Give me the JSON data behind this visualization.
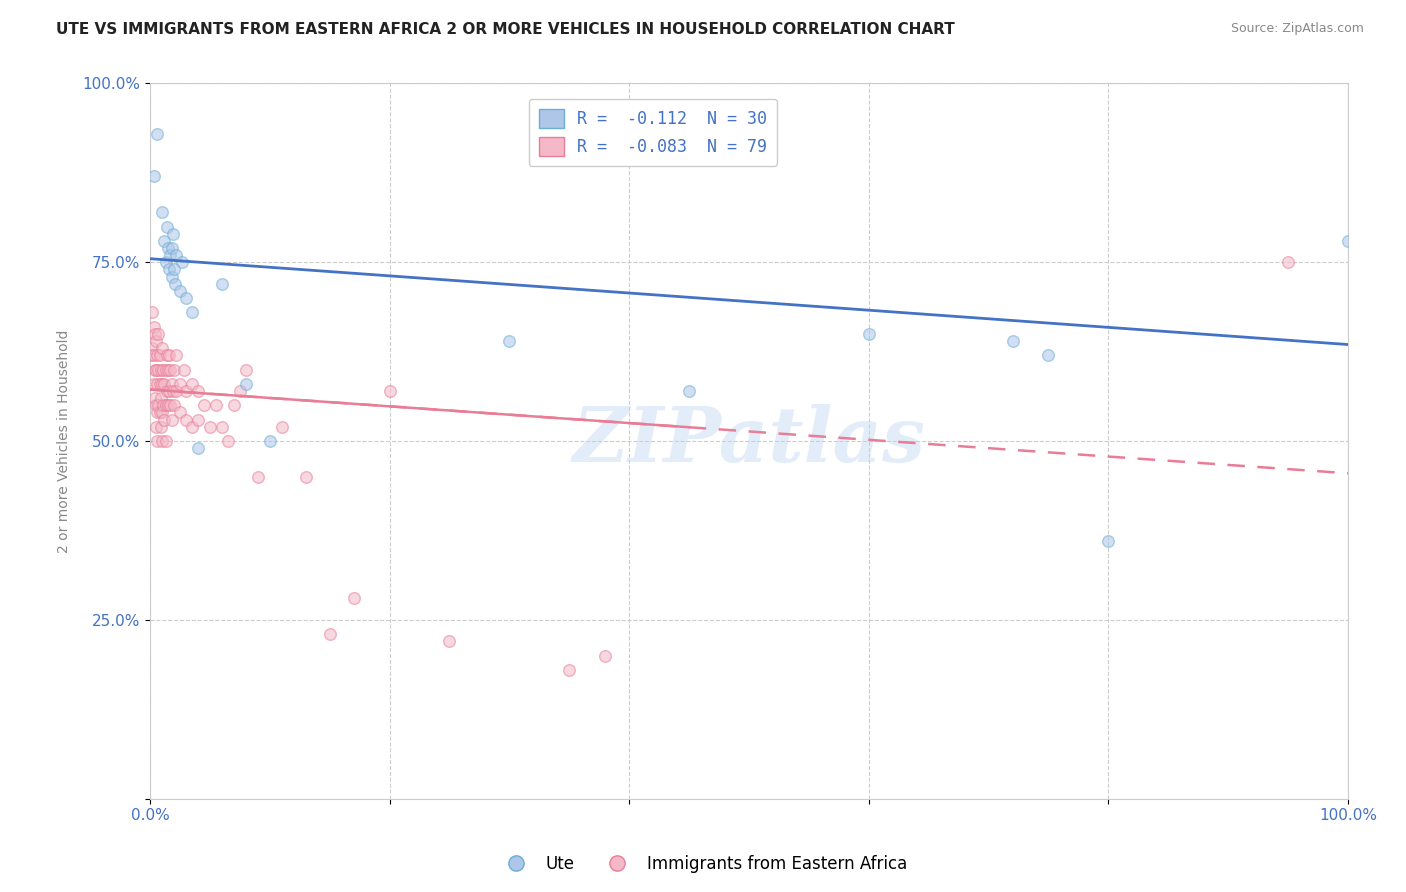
{
  "title": "UTE VS IMMIGRANTS FROM EASTERN AFRICA 2 OR MORE VEHICLES IN HOUSEHOLD CORRELATION CHART",
  "source": "Source: ZipAtlas.com",
  "ylabel": "2 or more Vehicles in Household",
  "xlabel": "",
  "background_color": "#ffffff",
  "grid_color": "#c8c8c8",
  "watermark": "ZIPatlas",
  "legend_label_ute": "R =  -0.112  N = 30",
  "legend_label_imm": "R =  -0.083  N = 79",
  "ute_points": [
    [
      0.003,
      0.87
    ],
    [
      0.006,
      0.93
    ],
    [
      0.01,
      0.82
    ],
    [
      0.012,
      0.78
    ],
    [
      0.013,
      0.75
    ],
    [
      0.014,
      0.8
    ],
    [
      0.015,
      0.77
    ],
    [
      0.016,
      0.74
    ],
    [
      0.017,
      0.76
    ],
    [
      0.018,
      0.73
    ],
    [
      0.018,
      0.77
    ],
    [
      0.019,
      0.79
    ],
    [
      0.02,
      0.74
    ],
    [
      0.021,
      0.72
    ],
    [
      0.022,
      0.76
    ],
    [
      0.025,
      0.71
    ],
    [
      0.027,
      0.75
    ],
    [
      0.03,
      0.7
    ],
    [
      0.035,
      0.68
    ],
    [
      0.04,
      0.49
    ],
    [
      0.06,
      0.72
    ],
    [
      0.08,
      0.58
    ],
    [
      0.1,
      0.5
    ],
    [
      0.3,
      0.64
    ],
    [
      0.6,
      0.65
    ],
    [
      0.72,
      0.64
    ],
    [
      0.75,
      0.62
    ],
    [
      0.8,
      0.36
    ],
    [
      1.0,
      0.78
    ],
    [
      0.45,
      0.57
    ]
  ],
  "immigrant_points": [
    [
      0.001,
      0.62
    ],
    [
      0.002,
      0.68
    ],
    [
      0.002,
      0.63
    ],
    [
      0.003,
      0.66
    ],
    [
      0.003,
      0.62
    ],
    [
      0.003,
      0.58
    ],
    [
      0.004,
      0.65
    ],
    [
      0.004,
      0.6
    ],
    [
      0.004,
      0.56
    ],
    [
      0.005,
      0.64
    ],
    [
      0.005,
      0.6
    ],
    [
      0.005,
      0.55
    ],
    [
      0.005,
      0.52
    ],
    [
      0.006,
      0.62
    ],
    [
      0.006,
      0.58
    ],
    [
      0.006,
      0.54
    ],
    [
      0.006,
      0.5
    ],
    [
      0.007,
      0.65
    ],
    [
      0.007,
      0.6
    ],
    [
      0.007,
      0.55
    ],
    [
      0.008,
      0.62
    ],
    [
      0.008,
      0.58
    ],
    [
      0.008,
      0.54
    ],
    [
      0.009,
      0.6
    ],
    [
      0.009,
      0.56
    ],
    [
      0.009,
      0.52
    ],
    [
      0.01,
      0.63
    ],
    [
      0.01,
      0.58
    ],
    [
      0.01,
      0.54
    ],
    [
      0.01,
      0.5
    ],
    [
      0.011,
      0.6
    ],
    [
      0.011,
      0.55
    ],
    [
      0.012,
      0.58
    ],
    [
      0.012,
      0.53
    ],
    [
      0.013,
      0.6
    ],
    [
      0.013,
      0.55
    ],
    [
      0.013,
      0.5
    ],
    [
      0.014,
      0.62
    ],
    [
      0.014,
      0.57
    ],
    [
      0.015,
      0.6
    ],
    [
      0.015,
      0.55
    ],
    [
      0.016,
      0.62
    ],
    [
      0.016,
      0.57
    ],
    [
      0.017,
      0.6
    ],
    [
      0.017,
      0.55
    ],
    [
      0.018,
      0.58
    ],
    [
      0.018,
      0.53
    ],
    [
      0.019,
      0.57
    ],
    [
      0.02,
      0.6
    ],
    [
      0.02,
      0.55
    ],
    [
      0.022,
      0.62
    ],
    [
      0.022,
      0.57
    ],
    [
      0.025,
      0.58
    ],
    [
      0.025,
      0.54
    ],
    [
      0.028,
      0.6
    ],
    [
      0.03,
      0.57
    ],
    [
      0.03,
      0.53
    ],
    [
      0.035,
      0.58
    ],
    [
      0.035,
      0.52
    ],
    [
      0.04,
      0.57
    ],
    [
      0.04,
      0.53
    ],
    [
      0.045,
      0.55
    ],
    [
      0.05,
      0.52
    ],
    [
      0.055,
      0.55
    ],
    [
      0.06,
      0.52
    ],
    [
      0.065,
      0.5
    ],
    [
      0.07,
      0.55
    ],
    [
      0.075,
      0.57
    ],
    [
      0.08,
      0.6
    ],
    [
      0.09,
      0.45
    ],
    [
      0.15,
      0.23
    ],
    [
      0.17,
      0.28
    ],
    [
      0.2,
      0.57
    ],
    [
      0.25,
      0.22
    ],
    [
      0.35,
      0.18
    ],
    [
      0.38,
      0.2
    ],
    [
      0.95,
      0.75
    ],
    [
      0.11,
      0.52
    ],
    [
      0.13,
      0.45
    ]
  ],
  "ute_color": "#aec6e8",
  "ute_edge_color": "#6baed6",
  "immigrant_color": "#f4b8c8",
  "immigrant_edge_color": "#e87d96",
  "ute_line_color": "#4472c4",
  "immigrant_line_color": "#e87d96",
  "ute_line_y0": 0.755,
  "ute_line_y1": 0.635,
  "imm_line_y0": 0.572,
  "imm_line_y1": 0.455,
  "xlim": [
    0.0,
    1.0
  ],
  "ylim": [
    0.0,
    1.0
  ],
  "xticks": [
    0.0,
    0.2,
    0.4,
    0.6,
    0.8,
    1.0
  ],
  "xticklabels": [
    "0.0%",
    "",
    "",
    "",
    "",
    "100.0%"
  ],
  "yticks": [
    0.0,
    0.25,
    0.5,
    0.75,
    1.0
  ],
  "yticklabels": [
    "",
    "25.0%",
    "50.0%",
    "75.0%",
    "100.0%"
  ],
  "title_fontsize": 11,
  "axis_fontsize": 10,
  "tick_fontsize": 11,
  "marker_size": 70,
  "marker_alpha": 0.55,
  "figsize": [
    14.06,
    8.92
  ],
  "dpi": 100
}
